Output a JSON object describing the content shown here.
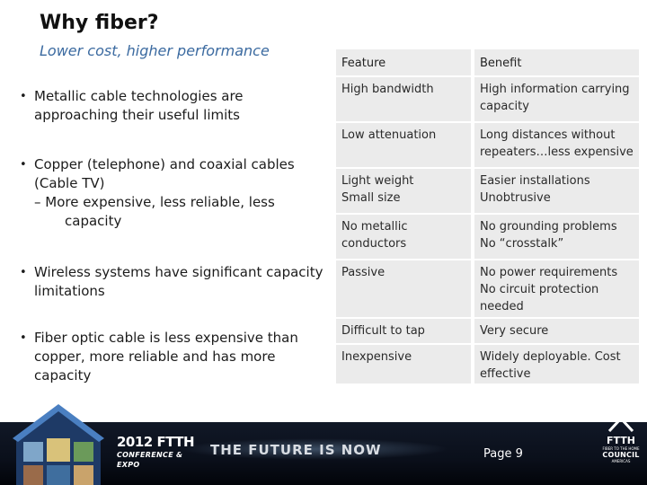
{
  "slide": {
    "title": "Why fiber?",
    "subtitle": "Lower cost, higher performance"
  },
  "bullets": [
    {
      "text": "Metallic cable technologies are approaching their useful limits"
    },
    {
      "text": "Copper (telephone) and coaxial cables (Cable TV)",
      "sub": "– More expensive, less reliable, less capacity"
    },
    {
      "text": "Wireless systems have significant capacity limitations"
    },
    {
      "text": "Fiber optic cable is less expensive than copper, more reliable and has more capacity"
    }
  ],
  "bullet_marker": "•",
  "table": {
    "headers": [
      "Feature",
      "Benefit"
    ],
    "rows": [
      [
        "High bandwidth",
        "High information carrying capacity"
      ],
      [
        "Low attenuation",
        "Long distances without repeaters…less expensive"
      ],
      [
        "Light weight\nSmall size",
        "Easier installations\nUnobtrusive"
      ],
      [
        "No metallic conductors",
        "No grounding problems\nNo “crosstalk”"
      ],
      [
        "Passive",
        "No power requirements\nNo circuit protection needed"
      ],
      [
        "Difficult to tap",
        "Very secure"
      ],
      [
        "Inexpensive",
        "Widely deployable.  Cost effective"
      ]
    ]
  },
  "footer": {
    "expo_year": "2012 FTTH",
    "expo_sub": "CONFERENCE & EXPO",
    "tagline": "THE FUTURE IS NOW",
    "page_label": "Page 9",
    "council_small": "FIBER TO THE HOME",
    "council_ftth": "FTTH",
    "council_name": "COUNCIL",
    "council_region": "AMERICAS"
  },
  "colors": {
    "subtitle": "#3b6aa0",
    "table_cell": "#ebebeb",
    "footer_band": "#0a0f1a"
  }
}
